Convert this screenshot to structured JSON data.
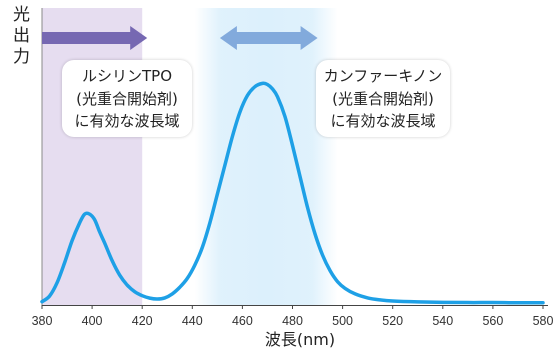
{
  "chart_data": {
    "type": "line",
    "xlabel": "波長(nm)",
    "ylabel": "光出力",
    "xlim": [
      380,
      580
    ],
    "ylim": [
      0,
      1.34
    ],
    "xticks": [
      380,
      400,
      420,
      440,
      460,
      480,
      500,
      520,
      540,
      560,
      580
    ],
    "grid": false,
    "series": [
      {
        "color": "#1ea0e6",
        "x": [
          380,
          383,
          386,
          389,
          392,
          395,
          397,
          399,
          401,
          403,
          405,
          408,
          411,
          414,
          417,
          420,
          423,
          426,
          429,
          432,
          435,
          438,
          441,
          444,
          447,
          450,
          453,
          456,
          459,
          462,
          465,
          468,
          470,
          472,
          474,
          477,
          480,
          483,
          486,
          489,
          492,
          495,
          498,
          501,
          505,
          510,
          515,
          520,
          530,
          540,
          550,
          560,
          570,
          580
        ],
        "y": [
          0.015,
          0.04,
          0.1,
          0.19,
          0.29,
          0.37,
          0.41,
          0.41,
          0.385,
          0.33,
          0.28,
          0.2,
          0.135,
          0.09,
          0.06,
          0.042,
          0.031,
          0.027,
          0.032,
          0.05,
          0.08,
          0.12,
          0.18,
          0.26,
          0.37,
          0.5,
          0.63,
          0.76,
          0.87,
          0.945,
          0.985,
          1.0,
          0.995,
          0.975,
          0.94,
          0.85,
          0.72,
          0.58,
          0.44,
          0.32,
          0.225,
          0.155,
          0.105,
          0.075,
          0.05,
          0.032,
          0.023,
          0.018,
          0.014,
          0.012,
          0.011,
          0.011,
          0.01,
          0.01
        ]
      }
    ],
    "bands": [
      {
        "range": [
          380,
          420
        ],
        "color": "#e6ddf0",
        "arrow": {
          "range": [
            380,
            422
          ],
          "direction": "right",
          "color": "#7668b2"
        },
        "label": [
          "ルシリンTPO",
          "(光重合開始剤)",
          "に有効な波長域"
        ]
      },
      {
        "range": [
          441,
          498
        ],
        "color": "#dcf0fc",
        "arrow": {
          "range": [
            451,
            490
          ],
          "direction": "both",
          "color": "#82aadc"
        },
        "label": [
          "カンファーキノン",
          "(光重合開始剤)",
          "に有効な波長域"
        ]
      }
    ]
  }
}
